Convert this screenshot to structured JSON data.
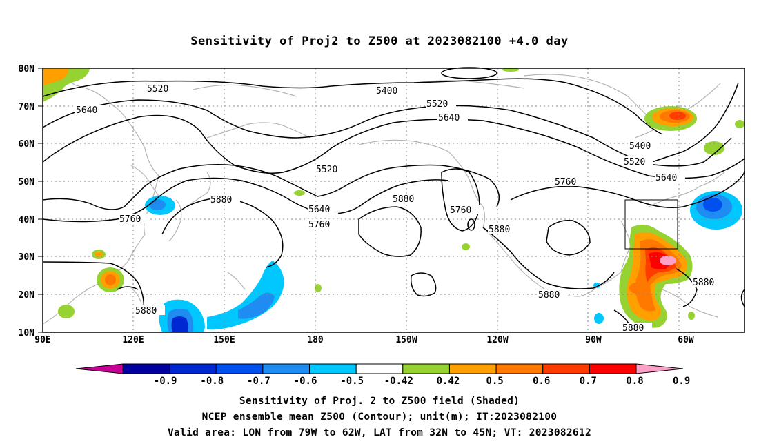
{
  "title": "Sensitivity of Proj2 to Z500 at 2023082100 +4.0 day",
  "lat_labels": [
    "80N",
    "70N",
    "60N",
    "50N",
    "40N",
    "30N",
    "20N",
    "10N"
  ],
  "lon_labels": [
    "90E",
    "120E",
    "150E",
    "180",
    "150W",
    "120W",
    "90W",
    "60W"
  ],
  "contour_labels": [
    "5520",
    "5400",
    "5520",
    "5640",
    "5640",
    "5400",
    "5520",
    "5640",
    "5520",
    "5760",
    "5880",
    "5640",
    "5760",
    "5880",
    "5760",
    "5880",
    "5760",
    "5880",
    "5880",
    "5880",
    "5880"
  ],
  "colorbar": {
    "ticks": [
      "-0.9",
      "-0.8",
      "-0.7",
      "-0.6",
      "-0.5",
      "-0.42",
      "0.42",
      "0.5",
      "0.6",
      "0.7",
      "0.8",
      "0.9"
    ],
    "colors": [
      "#c80096",
      "#0000a0",
      "#0028d2",
      "#0050f0",
      "#1e8cf0",
      "#00c8ff",
      "#ffffff",
      "#96d232",
      "#ffa000",
      "#ff7800",
      "#ff3c00",
      "#ff0000",
      "#ffa0c8"
    ]
  },
  "valid_area": {
    "lon": [
      "79W",
      "62W"
    ],
    "lat": [
      "32N",
      "45N"
    ]
  },
  "caption": {
    "line1": "Sensitivity of Proj. 2 to Z500 field (Shaded)",
    "line2": "NCEP ensemble mean Z500 (Contour); unit(m); IT:2023082100",
    "line3": "Valid area: LON from 79W to 62W, LAT from 32N to 45N; VT: 2023082612"
  }
}
